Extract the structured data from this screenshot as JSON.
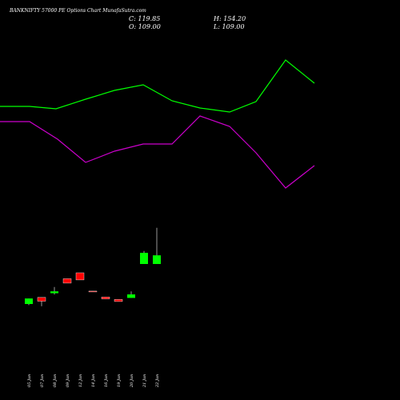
{
  "header": {
    "title": "BANKNIFTY 57000  PE Options  Chart MunafaSutra.com",
    "close": "C: 119.85",
    "high": "H: 154.20",
    "open": "O: 109.00",
    "low": "L: 109.00"
  },
  "colors": {
    "background": "#000000",
    "up": "#00ff00",
    "down": "#ff0000",
    "line_upper": "#00ff00",
    "line_lower": "#cc00cc",
    "text": "#ffffff"
  },
  "chart_data": {
    "type": "candlestick",
    "categories": [
      "05 Jun",
      "07 Jun",
      "08 Jun",
      "09 Jun",
      "12 Jun",
      "14 Jun",
      "16 Jun",
      "19 Jun",
      "20 Jun",
      "21 Jun",
      "22 Jun"
    ],
    "candles": [
      {
        "date": "05 Jun",
        "open": 59.0,
        "high": 66.0,
        "low": 57.6,
        "close": 65.9
      },
      {
        "date": "07 Jun",
        "open": 67.2,
        "high": 67.2,
        "low": 56.3,
        "close": 62.5
      },
      {
        "date": "08 Jun",
        "open": 72.5,
        "high": 80.2,
        "low": 70.9,
        "close": 74.8
      },
      {
        "date": "09 Jun",
        "open": 90.6,
        "high": 90.6,
        "low": 85.1,
        "close": 85.1
      },
      {
        "date": "12 Jun",
        "open": 98.0,
        "high": 98.0,
        "low": 89.1,
        "close": 89.1
      },
      {
        "date": "14 Jun",
        "open": 75.1,
        "high": 75.1,
        "low": 74.6,
        "close": 74.6
      },
      {
        "date": "16 Jun",
        "open": 67.7,
        "high": 67.7,
        "low": 65.4,
        "close": 65.4
      },
      {
        "date": "19 Jun",
        "open": 64.8,
        "high": 64.8,
        "low": 62.1,
        "close": 62.1
      },
      {
        "date": "20 Jun",
        "open": 66.6,
        "high": 74.8,
        "low": 66.6,
        "close": 71.0
      },
      {
        "date": "21 Jun",
        "open": 109.0,
        "high": 125.3,
        "low": 109.0,
        "close": 123.0
      },
      {
        "date": "22 Jun",
        "open": 109.0,
        "high": 154.2,
        "low": 109.0,
        "close": 119.85
      }
    ],
    "lines": [
      {
        "color": "#00ff00",
        "points": [
          [
            0,
            133
          ],
          [
            37,
            133
          ],
          [
            70,
            136
          ],
          [
            107,
            124
          ],
          [
            143,
            113
          ],
          [
            179,
            106
          ],
          [
            215,
            126
          ],
          [
            250,
            135
          ],
          [
            287,
            140
          ],
          [
            320,
            127
          ],
          [
            357,
            75
          ],
          [
            393,
            104
          ]
        ]
      },
      {
        "color": "#cc00cc",
        "points": [
          [
            0,
            152
          ],
          [
            37,
            152
          ],
          [
            72,
            174
          ],
          [
            107,
            203
          ],
          [
            143,
            189
          ],
          [
            179,
            180
          ],
          [
            215,
            180
          ],
          [
            250,
            145
          ],
          [
            287,
            158
          ],
          [
            320,
            191
          ],
          [
            357,
            235
          ],
          [
            393,
            207
          ]
        ]
      }
    ],
    "price_scale": {
      "pixels_per_unit": 1.0,
      "anchor_value": 109.0,
      "anchor_y": 330
    }
  }
}
